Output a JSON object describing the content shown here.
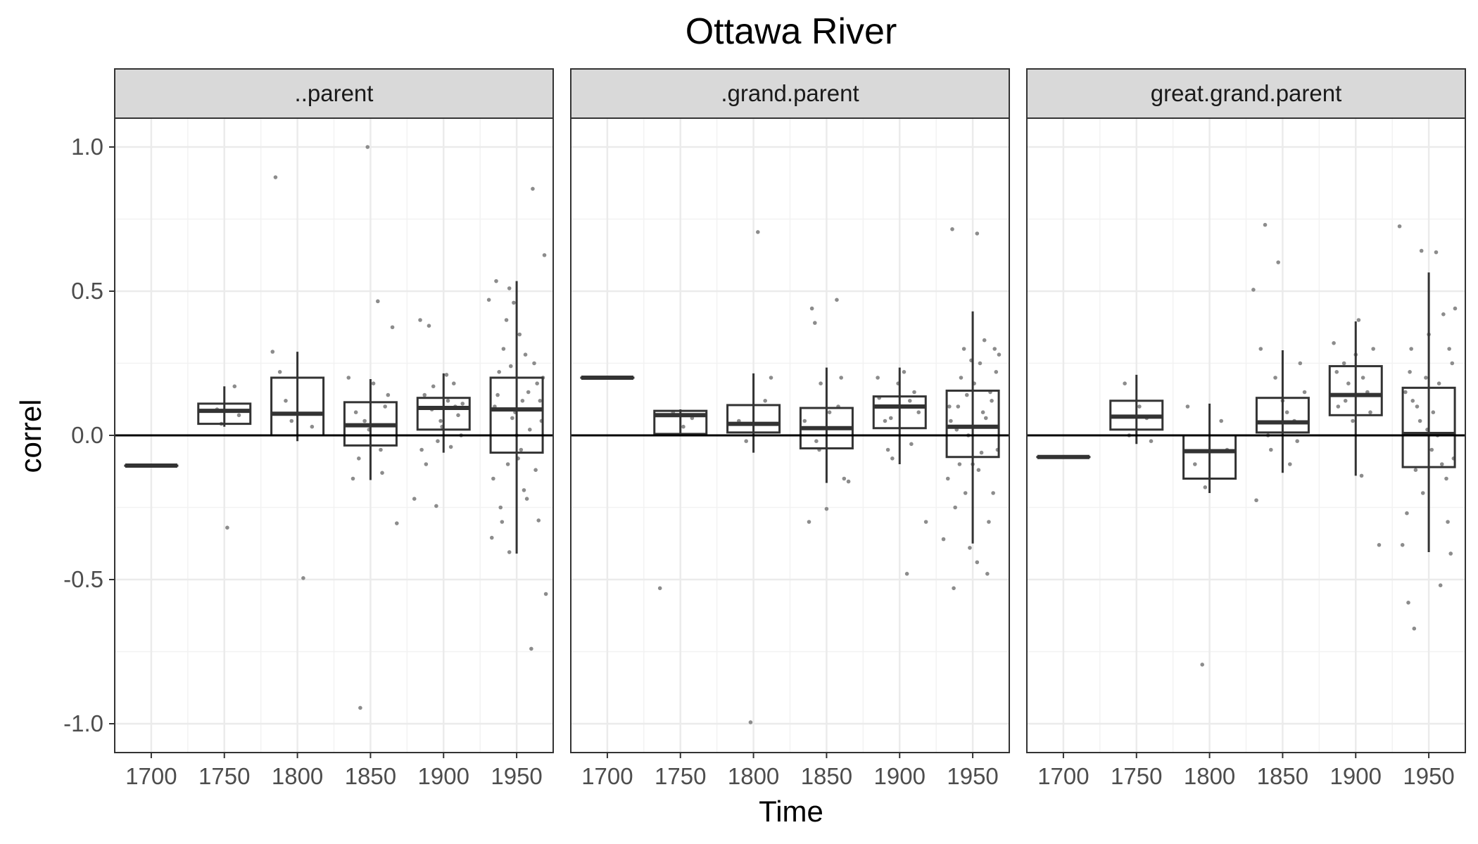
{
  "chart_data": {
    "type": "boxplot",
    "title": "Ottawa River",
    "xlabel": "Time",
    "ylabel": "correl",
    "xlim": [
      1675,
      1975
    ],
    "ylim": [
      -1.1,
      1.1
    ],
    "x_ticks": [
      1700,
      1750,
      1800,
      1850,
      1900,
      1950
    ],
    "y_ticks": [
      -1.0,
      -0.5,
      0.0,
      0.5,
      1.0
    ],
    "y_tick_labels": [
      "-1.0",
      "-0.5",
      "0.0",
      "0.5",
      "1.0"
    ],
    "x_tick_labels": [
      "1700",
      "1750",
      "1800",
      "1850",
      "1900",
      "1950"
    ],
    "reference_line_y": 0,
    "grid": true,
    "facets": [
      {
        "label": "..parent",
        "boxes": [
          {
            "x": 1700,
            "q1": -0.105,
            "median": -0.105,
            "q3": -0.105,
            "whisker_low": -0.105,
            "whisker_high": -0.105
          },
          {
            "x": 1750,
            "q1": 0.04,
            "median": 0.085,
            "q3": 0.11,
            "whisker_low": 0.03,
            "whisker_high": 0.17
          },
          {
            "x": 1800,
            "q1": 0.0,
            "median": 0.075,
            "q3": 0.2,
            "whisker_low": -0.02,
            "whisker_high": 0.29
          },
          {
            "x": 1850,
            "q1": -0.035,
            "median": 0.035,
            "q3": 0.115,
            "whisker_low": -0.155,
            "whisker_high": 0.195
          },
          {
            "x": 1900,
            "q1": 0.02,
            "median": 0.095,
            "q3": 0.13,
            "whisker_low": -0.06,
            "whisker_high": 0.215
          },
          {
            "x": 1950,
            "q1": -0.06,
            "median": 0.09,
            "q3": 0.2,
            "whisker_low": -0.41,
            "whisker_high": 0.535
          }
        ],
        "points": [
          [
            1752,
            -0.32
          ],
          [
            1757,
            0.17
          ],
          [
            1748,
            0.04
          ],
          [
            1745,
            0.09
          ],
          [
            1760,
            0.07
          ],
          [
            1785,
            0.895
          ],
          [
            1804,
            -0.495
          ],
          [
            1783,
            0.29
          ],
          [
            1792,
            0.12
          ],
          [
            1810,
            0.03
          ],
          [
            1796,
            0.05
          ],
          [
            1788,
            0.22
          ],
          [
            1848,
            1.0
          ],
          [
            1843,
            -0.945
          ],
          [
            1855,
            0.465
          ],
          [
            1865,
            0.375
          ],
          [
            1868,
            -0.305
          ],
          [
            1838,
            -0.15
          ],
          [
            1852,
            0.18
          ],
          [
            1846,
            0.05
          ],
          [
            1860,
            0.1
          ],
          [
            1842,
            -0.08
          ],
          [
            1857,
            -0.05
          ],
          [
            1862,
            0.14
          ],
          [
            1849,
            0.02
          ],
          [
            1835,
            0.2
          ],
          [
            1858,
            -0.13
          ],
          [
            1840,
            0.08
          ],
          [
            1884,
            0.4
          ],
          [
            1890,
            0.38
          ],
          [
            1895,
            -0.245
          ],
          [
            1880,
            -0.22
          ],
          [
            1888,
            -0.1
          ],
          [
            1898,
            0.05
          ],
          [
            1903,
            0.12
          ],
          [
            1910,
            0.07
          ],
          [
            1893,
            0.17
          ],
          [
            1885,
            -0.05
          ],
          [
            1907,
            0.18
          ],
          [
            1912,
            0.0
          ],
          [
            1892,
            0.09
          ],
          [
            1902,
            0.21
          ],
          [
            1887,
            0.14
          ],
          [
            1896,
            -0.02
          ],
          [
            1908,
            0.1
          ],
          [
            1913,
            0.11
          ],
          [
            1899,
            0.03
          ],
          [
            1905,
            -0.04
          ],
          [
            1961,
            0.855
          ],
          [
            1969,
            0.625
          ],
          [
            1936,
            0.535
          ],
          [
            1931,
            0.47
          ],
          [
            1945,
            0.51
          ],
          [
            1948,
            0.46
          ],
          [
            1960,
            -0.74
          ],
          [
            1970,
            -0.55
          ],
          [
            1945,
            -0.405
          ],
          [
            1933,
            -0.355
          ],
          [
            1955,
            -0.19
          ],
          [
            1965,
            -0.295
          ],
          [
            1940,
            -0.3
          ],
          [
            1958,
            0.15
          ],
          [
            1962,
            0.25
          ],
          [
            1938,
            0.22
          ],
          [
            1952,
            0.35
          ],
          [
            1944,
            -0.1
          ],
          [
            1967,
            0.05
          ],
          [
            1935,
            0.1
          ],
          [
            1950,
            0.0
          ],
          [
            1957,
            -0.22
          ],
          [
            1941,
            0.3
          ],
          [
            1964,
            0.18
          ],
          [
            1947,
            0.06
          ],
          [
            1953,
            -0.05
          ],
          [
            1966,
            0.12
          ],
          [
            1939,
            -0.25
          ],
          [
            1956,
            0.28
          ],
          [
            1943,
            0.4
          ],
          [
            1968,
            0.2
          ],
          [
            1934,
            -0.15
          ],
          [
            1949,
            0.08
          ],
          [
            1963,
            -0.12
          ],
          [
            1937,
            0.14
          ],
          [
            1959,
            0.02
          ],
          [
            1946,
            0.24
          ],
          [
            1951,
            -0.08
          ],
          [
            1954,
            0.12
          ]
        ]
      },
      {
        "label": ".grand.parent",
        "boxes": [
          {
            "x": 1700,
            "q1": 0.2,
            "median": 0.2,
            "q3": 0.2,
            "whisker_low": 0.2,
            "whisker_high": 0.2
          },
          {
            "x": 1750,
            "q1": 0.005,
            "median": 0.07,
            "q3": 0.085,
            "whisker_low": 0.0,
            "whisker_high": 0.09
          },
          {
            "x": 1800,
            "q1": 0.01,
            "median": 0.04,
            "q3": 0.105,
            "whisker_low": -0.06,
            "whisker_high": 0.215
          },
          {
            "x": 1850,
            "q1": -0.045,
            "median": 0.025,
            "q3": 0.095,
            "whisker_low": -0.165,
            "whisker_high": 0.235
          },
          {
            "x": 1900,
            "q1": 0.025,
            "median": 0.1,
            "q3": 0.135,
            "whisker_low": -0.1,
            "whisker_high": 0.235
          },
          {
            "x": 1950,
            "q1": -0.075,
            "median": 0.03,
            "q3": 0.155,
            "whisker_low": -0.375,
            "whisker_high": 0.43
          }
        ],
        "points": [
          [
            1736,
            -0.53
          ],
          [
            1745,
            0.08
          ],
          [
            1752,
            0.03
          ],
          [
            1758,
            0.06
          ],
          [
            1803,
            0.705
          ],
          [
            1798,
            -0.995
          ],
          [
            1790,
            0.05
          ],
          [
            1808,
            0.12
          ],
          [
            1795,
            -0.02
          ],
          [
            1812,
            0.2
          ],
          [
            1840,
            0.44
          ],
          [
            1842,
            0.39
          ],
          [
            1838,
            -0.3
          ],
          [
            1857,
            0.47
          ],
          [
            1850,
            -0.255
          ],
          [
            1862,
            -0.15
          ],
          [
            1846,
            0.18
          ],
          [
            1835,
            0.05
          ],
          [
            1858,
            0.1
          ],
          [
            1845,
            -0.05
          ],
          [
            1865,
            -0.16
          ],
          [
            1852,
            0.08
          ],
          [
            1860,
            0.2
          ],
          [
            1843,
            -0.02
          ],
          [
            1905,
            -0.48
          ],
          [
            1918,
            -0.3
          ],
          [
            1885,
            0.2
          ],
          [
            1892,
            -0.05
          ],
          [
            1898,
            0.1
          ],
          [
            1910,
            0.15
          ],
          [
            1890,
            0.05
          ],
          [
            1903,
            0.22
          ],
          [
            1913,
            0.08
          ],
          [
            1895,
            -0.08
          ],
          [
            1907,
            0.12
          ],
          [
            1899,
            0.18
          ],
          [
            1886,
            0.13
          ],
          [
            1908,
            -0.03
          ],
          [
            1912,
            0.1
          ],
          [
            1894,
            0.06
          ],
          [
            1936,
            0.715
          ],
          [
            1953,
            0.7
          ],
          [
            1960,
            -0.48
          ],
          [
            1937,
            -0.53
          ],
          [
            1953,
            -0.44
          ],
          [
            1948,
            -0.39
          ],
          [
            1930,
            -0.36
          ],
          [
            1965,
            0.3
          ],
          [
            1958,
            0.33
          ],
          [
            1940,
            0.1
          ],
          [
            1945,
            -0.2
          ],
          [
            1962,
            0.15
          ],
          [
            1935,
            0.05
          ],
          [
            1950,
            -0.1
          ],
          [
            1942,
            0.2
          ],
          [
            1967,
            -0.05
          ],
          [
            1955,
            0.25
          ],
          [
            1933,
            -0.15
          ],
          [
            1947,
            0.0
          ],
          [
            1963,
            0.12
          ],
          [
            1938,
            -0.25
          ],
          [
            1957,
            0.08
          ],
          [
            1944,
            0.3
          ],
          [
            1961,
            -0.3
          ],
          [
            1951,
            0.18
          ],
          [
            1966,
            0.22
          ],
          [
            1939,
            0.02
          ],
          [
            1954,
            -0.12
          ],
          [
            1959,
            0.06
          ],
          [
            1934,
            0.1
          ],
          [
            1964,
            -0.2
          ],
          [
            1946,
            0.14
          ],
          [
            1956,
            -0.06
          ],
          [
            1949,
            0.26
          ],
          [
            1941,
            -0.1
          ],
          [
            1968,
            0.28
          ]
        ]
      },
      {
        "label": "great.grand.parent",
        "boxes": [
          {
            "x": 1700,
            "q1": -0.075,
            "median": -0.075,
            "q3": -0.075,
            "whisker_low": -0.075,
            "whisker_high": -0.075
          },
          {
            "x": 1750,
            "q1": 0.02,
            "median": 0.065,
            "q3": 0.12,
            "whisker_low": -0.03,
            "whisker_high": 0.21
          },
          {
            "x": 1800,
            "q1": -0.15,
            "median": -0.055,
            "q3": 0.0,
            "whisker_low": -0.2,
            "whisker_high": 0.11
          },
          {
            "x": 1850,
            "q1": 0.01,
            "median": 0.045,
            "q3": 0.13,
            "whisker_low": -0.13,
            "whisker_high": 0.295
          },
          {
            "x": 1900,
            "q1": 0.07,
            "median": 0.14,
            "q3": 0.24,
            "whisker_low": -0.14,
            "whisker_high": 0.395
          },
          {
            "x": 1950,
            "q1": -0.11,
            "median": 0.005,
            "q3": 0.165,
            "whisker_low": -0.405,
            "whisker_high": 0.565
          }
        ],
        "points": [
          [
            1745,
            0.0
          ],
          [
            1752,
            0.1
          ],
          [
            1760,
            -0.02
          ],
          [
            1742,
            0.18
          ],
          [
            1757,
            0.06
          ],
          [
            1795,
            -0.795
          ],
          [
            1790,
            -0.1
          ],
          [
            1808,
            0.05
          ],
          [
            1797,
            -0.18
          ],
          [
            1785,
            0.1
          ],
          [
            1812,
            -0.05
          ],
          [
            1838,
            0.73
          ],
          [
            1847,
            0.6
          ],
          [
            1830,
            0.505
          ],
          [
            1832,
            -0.225
          ],
          [
            1845,
            0.2
          ],
          [
            1855,
            -0.1
          ],
          [
            1862,
            0.25
          ],
          [
            1840,
            0.0
          ],
          [
            1850,
            0.12
          ],
          [
            1858,
            0.05
          ],
          [
            1842,
            -0.05
          ],
          [
            1865,
            0.15
          ],
          [
            1835,
            0.3
          ],
          [
            1853,
            0.08
          ],
          [
            1860,
            -0.02
          ],
          [
            1885,
            0.32
          ],
          [
            1892,
            0.25
          ],
          [
            1898,
            0.05
          ],
          [
            1905,
            0.2
          ],
          [
            1912,
            0.3
          ],
          [
            1888,
            0.1
          ],
          [
            1902,
            0.4
          ],
          [
            1908,
            0.15
          ],
          [
            1895,
            0.18
          ],
          [
            1916,
            -0.38
          ],
          [
            1887,
            0.22
          ],
          [
            1910,
            0.08
          ],
          [
            1900,
            0.28
          ],
          [
            1893,
            0.12
          ],
          [
            1904,
            -0.14
          ],
          [
            1930,
            0.725
          ],
          [
            1945,
            0.64
          ],
          [
            1955,
            0.635
          ],
          [
            1936,
            -0.58
          ],
          [
            1940,
            -0.67
          ],
          [
            1958,
            -0.52
          ],
          [
            1965,
            -0.41
          ],
          [
            1932,
            -0.38
          ],
          [
            1968,
            0.44
          ],
          [
            1960,
            0.42
          ],
          [
            1935,
            -0.27
          ],
          [
            1948,
            0.2
          ],
          [
            1962,
            -0.15
          ],
          [
            1938,
            0.3
          ],
          [
            1952,
            -0.05
          ],
          [
            1942,
            0.1
          ],
          [
            1966,
            0.25
          ],
          [
            1946,
            -0.2
          ],
          [
            1956,
            0.0
          ],
          [
            1934,
            0.15
          ],
          [
            1963,
            -0.3
          ],
          [
            1944,
            0.05
          ],
          [
            1950,
            0.35
          ],
          [
            1959,
            -0.1
          ],
          [
            1937,
            0.22
          ],
          [
            1953,
            0.08
          ],
          [
            1967,
            -0.08
          ],
          [
            1941,
            -0.12
          ],
          [
            1957,
            0.18
          ],
          [
            1949,
            0.02
          ],
          [
            1939,
            0.12
          ],
          [
            1964,
            0.3
          ]
        ]
      }
    ]
  }
}
